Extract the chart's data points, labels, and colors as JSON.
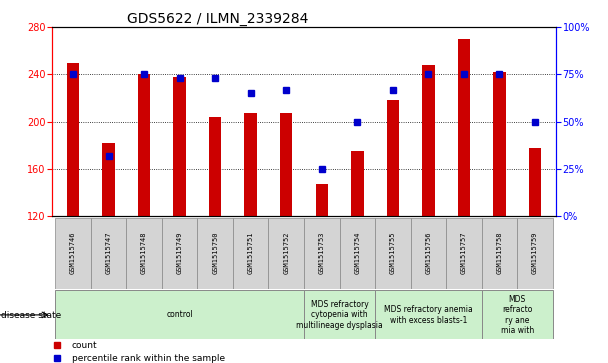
{
  "title": "GDS5622 / ILMN_2339284",
  "samples": [
    "GSM1515746",
    "GSM1515747",
    "GSM1515748",
    "GSM1515749",
    "GSM1515750",
    "GSM1515751",
    "GSM1515752",
    "GSM1515753",
    "GSM1515754",
    "GSM1515755",
    "GSM1515756",
    "GSM1515757",
    "GSM1515758",
    "GSM1515759"
  ],
  "counts": [
    250,
    182,
    240,
    238,
    204,
    207,
    207,
    147,
    175,
    218,
    248,
    270,
    242,
    178
  ],
  "percentiles": [
    75,
    32,
    75,
    73,
    73,
    65,
    67,
    25,
    50,
    67,
    75,
    75,
    75,
    50
  ],
  "ylim_left": [
    120,
    280
  ],
  "ylim_right": [
    0,
    100
  ],
  "yticks_left": [
    120,
    160,
    200,
    240,
    280
  ],
  "yticks_right": [
    0,
    25,
    50,
    75,
    100
  ],
  "bar_color": "#cc0000",
  "dot_color": "#0000cc",
  "bar_width": 0.35,
  "disease_groups": [
    {
      "label": "control",
      "start": 0,
      "end": 7,
      "color": "#ccf0cc"
    },
    {
      "label": "MDS refractory\ncytopenia with\nmultilineage dysplasia",
      "start": 7,
      "end": 9,
      "color": "#ccf0cc"
    },
    {
      "label": "MDS refractory anemia\nwith excess blasts-1",
      "start": 9,
      "end": 12,
      "color": "#ccf0cc"
    },
    {
      "label": "MDS\nrefracto\nry ane\nmia with",
      "start": 12,
      "end": 14,
      "color": "#ccf0cc"
    }
  ],
  "legend_count": "count",
  "legend_percentile": "percentile rank within the sample",
  "bg_color": "#ffffff",
  "label_box_color": "#d4d4d4",
  "title_fontsize": 10,
  "tick_fontsize": 7,
  "sample_fontsize": 5,
  "disease_fontsize": 5.5,
  "legend_fontsize": 6.5
}
